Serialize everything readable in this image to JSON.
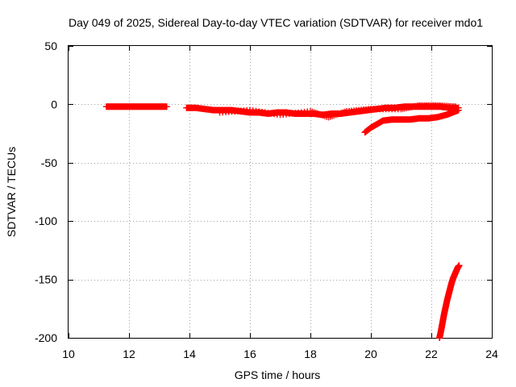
{
  "chart_data": {
    "type": "scatter",
    "title": "Day 049 of 2025, Sidereal Day-to-day VTEC variation (SDTVAR) for receiver mdo1",
    "xlabel": "GPS time / hours",
    "ylabel": "SDTVAR / TECUs",
    "xlim": [
      10,
      24
    ],
    "ylim": [
      -200,
      50
    ],
    "xticks": [
      10,
      12,
      14,
      16,
      18,
      20,
      22,
      24
    ],
    "yticks": [
      50,
      0,
      -50,
      -100,
      -150,
      -200
    ],
    "grid": true,
    "marker": "plus",
    "color": "#ff0000",
    "series": [
      {
        "name": "segment-1",
        "x": [
          11.25,
          11.5,
          11.75,
          12.0,
          12.25,
          12.5,
          12.75,
          13.0,
          13.25
        ],
        "y": [
          -2,
          -2,
          -2,
          -2,
          -2,
          -2,
          -2,
          -2,
          -2
        ]
      },
      {
        "name": "segment-2",
        "x": [
          13.9,
          14.2,
          14.5,
          14.8,
          15.1,
          15.4,
          15.7,
          16.0,
          16.3,
          16.6,
          16.9,
          17.2,
          17.5,
          17.8,
          18.1,
          18.4,
          18.7,
          19.0,
          19.3,
          19.6,
          19.9,
          20.2,
          20.5,
          20.8,
          21.1,
          21.4,
          21.7,
          22.0,
          22.3,
          22.6,
          22.9
        ],
        "y": [
          -3,
          -3,
          -4,
          -5,
          -5,
          -5,
          -6,
          -7,
          -7,
          -8,
          -7,
          -7,
          -8,
          -8,
          -8,
          -9,
          -8,
          -8,
          -7,
          -6,
          -5,
          -4,
          -3,
          -3,
          -2,
          -2,
          -2,
          -2,
          -2,
          -3,
          -3
        ]
      },
      {
        "name": "segment-2-band",
        "x": [
          15.0,
          16.0,
          17.0,
          18.0,
          18.6,
          19.2,
          20.0,
          21.0,
          21.6,
          22.2,
          22.8
        ],
        "y": [
          -7,
          -5,
          -9,
          -6,
          -11,
          -6,
          -4,
          -4,
          -1,
          -1,
          -2
        ]
      },
      {
        "name": "segment-3",
        "x": [
          19.8,
          20.0,
          20.2,
          20.4,
          20.7,
          21.0,
          21.3,
          21.6,
          21.9,
          22.2,
          22.5,
          22.7,
          22.9
        ],
        "y": [
          -24,
          -20,
          -17,
          -14,
          -13,
          -13,
          -13,
          -12,
          -12,
          -11,
          -9,
          -7,
          -5
        ]
      },
      {
        "name": "segment-4",
        "x": [
          22.27,
          22.32,
          22.37,
          22.42,
          22.47,
          22.52,
          22.57,
          22.62,
          22.67,
          22.72,
          22.77,
          22.82,
          22.87,
          22.92
        ],
        "y": [
          -200,
          -194,
          -187,
          -180,
          -174,
          -168,
          -163,
          -158,
          -153,
          -149,
          -146,
          -143,
          -140,
          -138
        ]
      }
    ]
  }
}
